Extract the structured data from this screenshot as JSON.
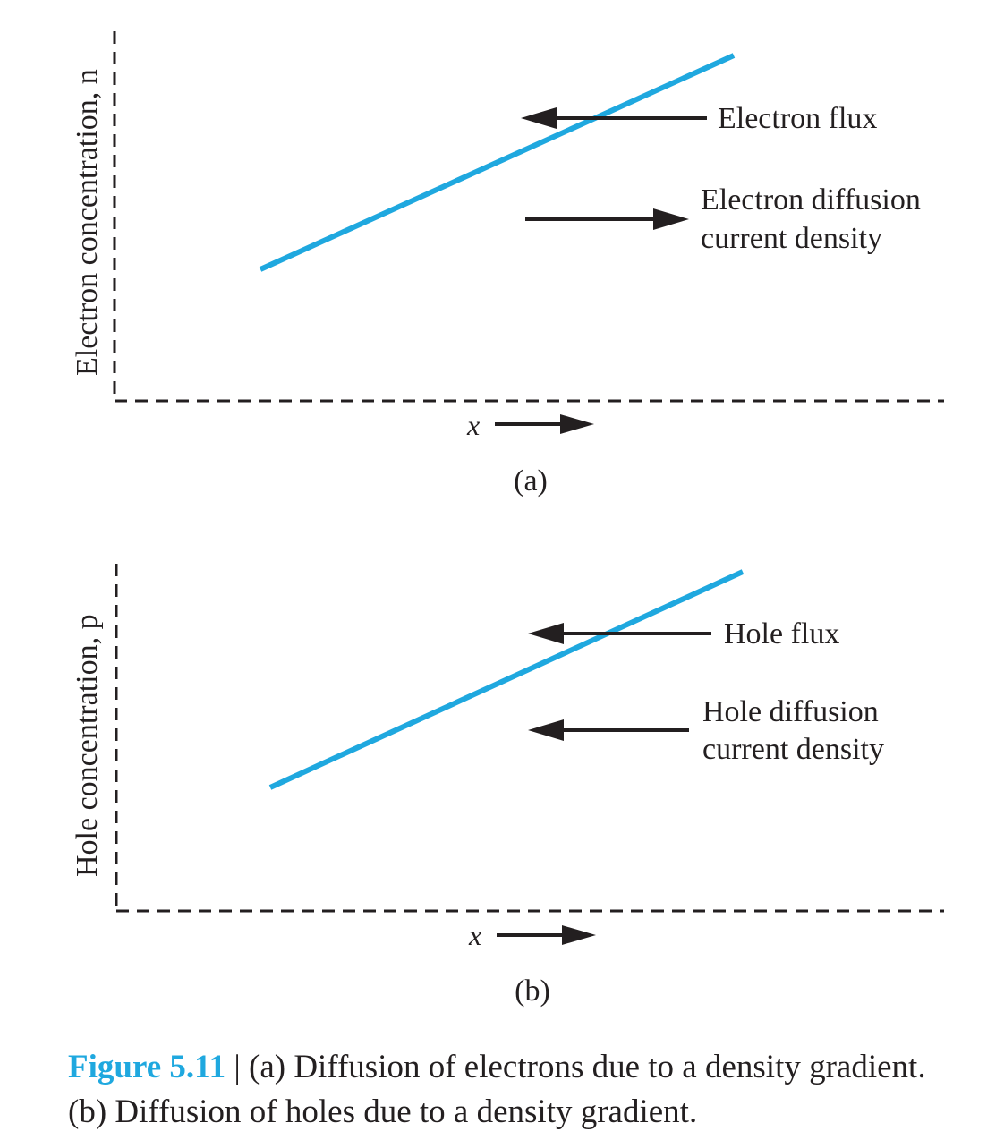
{
  "panel_a": {
    "y_axis_label": "Electron concentration, n",
    "x_axis_label": "x",
    "flux_label": "Electron flux",
    "current_label_line1": "Electron diffusion",
    "current_label_line2": "current density",
    "panel_label": "(a)"
  },
  "panel_b": {
    "y_axis_label": "Hole concentration, p",
    "x_axis_label": "x",
    "flux_label": "Hole flux",
    "current_label_line1": "Hole diffusion",
    "current_label_line2": "current density",
    "panel_label": "(b)"
  },
  "caption": {
    "figure_number": "Figure 5.11",
    "separator": " | ",
    "text": "(a) Diffusion of electrons due to a density gradient. (b) Diffusion of holes due to a density gradient."
  },
  "colors": {
    "line": "#1fa8df",
    "ink": "#231f20",
    "figure_number": "#1fa8df"
  }
}
